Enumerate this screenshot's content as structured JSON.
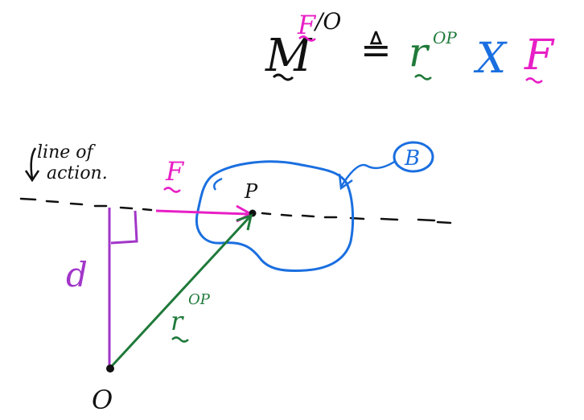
{
  "equation": {
    "moment_symbol": "M",
    "superscript_force": "F",
    "superscript_point": "/O",
    "defined_as": "≜",
    "position_symbol": "r",
    "position_superscript": "OP",
    "cross": "X",
    "force_symbol": "F"
  },
  "labels": {
    "line_of_action_1": "line of",
    "line_of_action_2": "action.",
    "force": "F",
    "point": "P",
    "body": "B",
    "distance": "d",
    "position_vector": "r",
    "position_vector_superscript": "OP",
    "origin": "O"
  },
  "colors": {
    "black": "#111111",
    "magenta": "#e81fc6",
    "green": "#1f7a3a",
    "blue": "#1a6fe0",
    "purple": "#a236c9"
  }
}
